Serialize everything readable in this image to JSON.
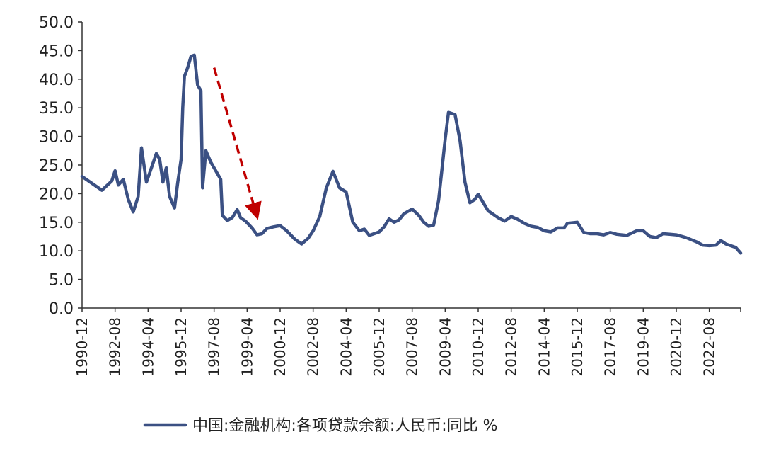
{
  "chart_data": {
    "type": "line",
    "title": "",
    "xlabel": "",
    "ylabel": "",
    "ylim": [
      0,
      50
    ],
    "yticks": [
      "0.0",
      "5.0",
      "10.0",
      "15.0",
      "20.0",
      "25.0",
      "30.0",
      "35.0",
      "40.0",
      "45.0",
      "50.0"
    ],
    "xticks": [
      "1990-12",
      "1992-08",
      "1994-04",
      "1995-12",
      "1997-08",
      "1999-04",
      "2000-12",
      "2002-08",
      "2004-04",
      "2005-12",
      "2007-08",
      "2009-04",
      "2010-12",
      "2012-08",
      "2014-04",
      "2015-12",
      "2017-08",
      "2019-04",
      "2020-12",
      "2022-08"
    ],
    "grid": false,
    "legend_position": "bottom",
    "series": [
      {
        "name": "中国:金融机构:各项贷款余额:人民币:同比 %",
        "color": "#3b5083",
        "points": [
          [
            "1990-12",
            23.0
          ],
          [
            "1991-06",
            21.8
          ],
          [
            "1991-12",
            20.6
          ],
          [
            "1992-06",
            22.2
          ],
          [
            "1992-08",
            24.0
          ],
          [
            "1992-10",
            21.5
          ],
          [
            "1993-01",
            22.5
          ],
          [
            "1993-04",
            19.0
          ],
          [
            "1993-07",
            16.8
          ],
          [
            "1993-10",
            19.5
          ],
          [
            "1993-12",
            28.0
          ],
          [
            "1994-03",
            22.0
          ],
          [
            "1994-06",
            24.5
          ],
          [
            "1994-09",
            27.0
          ],
          [
            "1994-11",
            26.0
          ],
          [
            "1995-01",
            22.0
          ],
          [
            "1995-03",
            24.5
          ],
          [
            "1995-05",
            19.5
          ],
          [
            "1995-08",
            17.5
          ],
          [
            "1995-10",
            22.0
          ],
          [
            "1995-12",
            26.0
          ],
          [
            "1996-01",
            35.0
          ],
          [
            "1996-02",
            40.5
          ],
          [
            "1996-04",
            42.0
          ],
          [
            "1996-06",
            44.0
          ],
          [
            "1996-08",
            44.2
          ],
          [
            "1996-10",
            39.0
          ],
          [
            "1996-12",
            38.0
          ],
          [
            "1997-01",
            21.0
          ],
          [
            "1997-03",
            27.5
          ],
          [
            "1997-06",
            25.5
          ],
          [
            "1997-09",
            24.0
          ],
          [
            "1997-12",
            22.5
          ],
          [
            "1998-01",
            16.2
          ],
          [
            "1998-04",
            15.3
          ],
          [
            "1998-07",
            15.8
          ],
          [
            "1998-10",
            17.2
          ],
          [
            "1998-12",
            15.8
          ],
          [
            "1999-03",
            15.2
          ],
          [
            "1999-07",
            14.0
          ],
          [
            "1999-10",
            12.8
          ],
          [
            "2000-01",
            13.0
          ],
          [
            "2000-04",
            13.9
          ],
          [
            "2000-08",
            14.2
          ],
          [
            "2000-12",
            14.4
          ],
          [
            "2001-04",
            13.5
          ],
          [
            "2001-09",
            12.0
          ],
          [
            "2002-01",
            11.2
          ],
          [
            "2002-05",
            12.2
          ],
          [
            "2002-08",
            13.5
          ],
          [
            "2002-12",
            16.0
          ],
          [
            "2003-04",
            21.0
          ],
          [
            "2003-08",
            23.9
          ],
          [
            "2003-12",
            21.0
          ],
          [
            "2004-04",
            20.3
          ],
          [
            "2004-08",
            15.0
          ],
          [
            "2004-12",
            13.5
          ],
          [
            "2005-03",
            13.8
          ],
          [
            "2005-06",
            12.7
          ],
          [
            "2005-12",
            13.3
          ],
          [
            "2006-03",
            14.2
          ],
          [
            "2006-06",
            15.6
          ],
          [
            "2006-09",
            15.0
          ],
          [
            "2006-12",
            15.4
          ],
          [
            "2007-03",
            16.5
          ],
          [
            "2007-08",
            17.3
          ],
          [
            "2007-12",
            16.2
          ],
          [
            "2008-03",
            15.0
          ],
          [
            "2008-06",
            14.3
          ],
          [
            "2008-09",
            14.5
          ],
          [
            "2008-12",
            18.8
          ],
          [
            "2009-02",
            24.2
          ],
          [
            "2009-04",
            29.5
          ],
          [
            "2009-06",
            34.2
          ],
          [
            "2009-08",
            34.0
          ],
          [
            "2009-10",
            33.8
          ],
          [
            "2010-01",
            29.3
          ],
          [
            "2010-04",
            22.0
          ],
          [
            "2010-07",
            18.4
          ],
          [
            "2010-10",
            19.0
          ],
          [
            "2010-12",
            19.9
          ],
          [
            "2011-06",
            17.0
          ],
          [
            "2011-12",
            15.8
          ],
          [
            "2012-04",
            15.2
          ],
          [
            "2012-08",
            16.0
          ],
          [
            "2012-12",
            15.5
          ],
          [
            "2013-04",
            14.8
          ],
          [
            "2013-08",
            14.3
          ],
          [
            "2013-12",
            14.1
          ],
          [
            "2014-04",
            13.5
          ],
          [
            "2014-08",
            13.3
          ],
          [
            "2014-12",
            14.0
          ],
          [
            "2015-04",
            14.0
          ],
          [
            "2015-06",
            14.8
          ],
          [
            "2015-12",
            15.0
          ],
          [
            "2016-04",
            13.2
          ],
          [
            "2016-08",
            13.0
          ],
          [
            "2016-12",
            13.0
          ],
          [
            "2017-04",
            12.8
          ],
          [
            "2017-08",
            13.2
          ],
          [
            "2017-12",
            12.9
          ],
          [
            "2018-06",
            12.7
          ],
          [
            "2018-12",
            13.5
          ],
          [
            "2019-04",
            13.5
          ],
          [
            "2019-08",
            12.5
          ],
          [
            "2019-12",
            12.3
          ],
          [
            "2020-04",
            13.0
          ],
          [
            "2020-08",
            12.9
          ],
          [
            "2020-12",
            12.8
          ],
          [
            "2021-06",
            12.3
          ],
          [
            "2021-12",
            11.6
          ],
          [
            "2022-04",
            11.0
          ],
          [
            "2022-08",
            10.9
          ],
          [
            "2022-12",
            11.0
          ],
          [
            "2023-03",
            11.8
          ],
          [
            "2023-06",
            11.2
          ],
          [
            "2023-12",
            10.6
          ],
          [
            "2024-03",
            9.6
          ]
        ]
      }
    ],
    "annotations": [
      {
        "type": "arrow",
        "style": "dashed",
        "color": "#c00000",
        "from": [
          "1997-08",
          42.0
        ],
        "to": [
          "1999-10",
          16.0
        ]
      }
    ]
  }
}
